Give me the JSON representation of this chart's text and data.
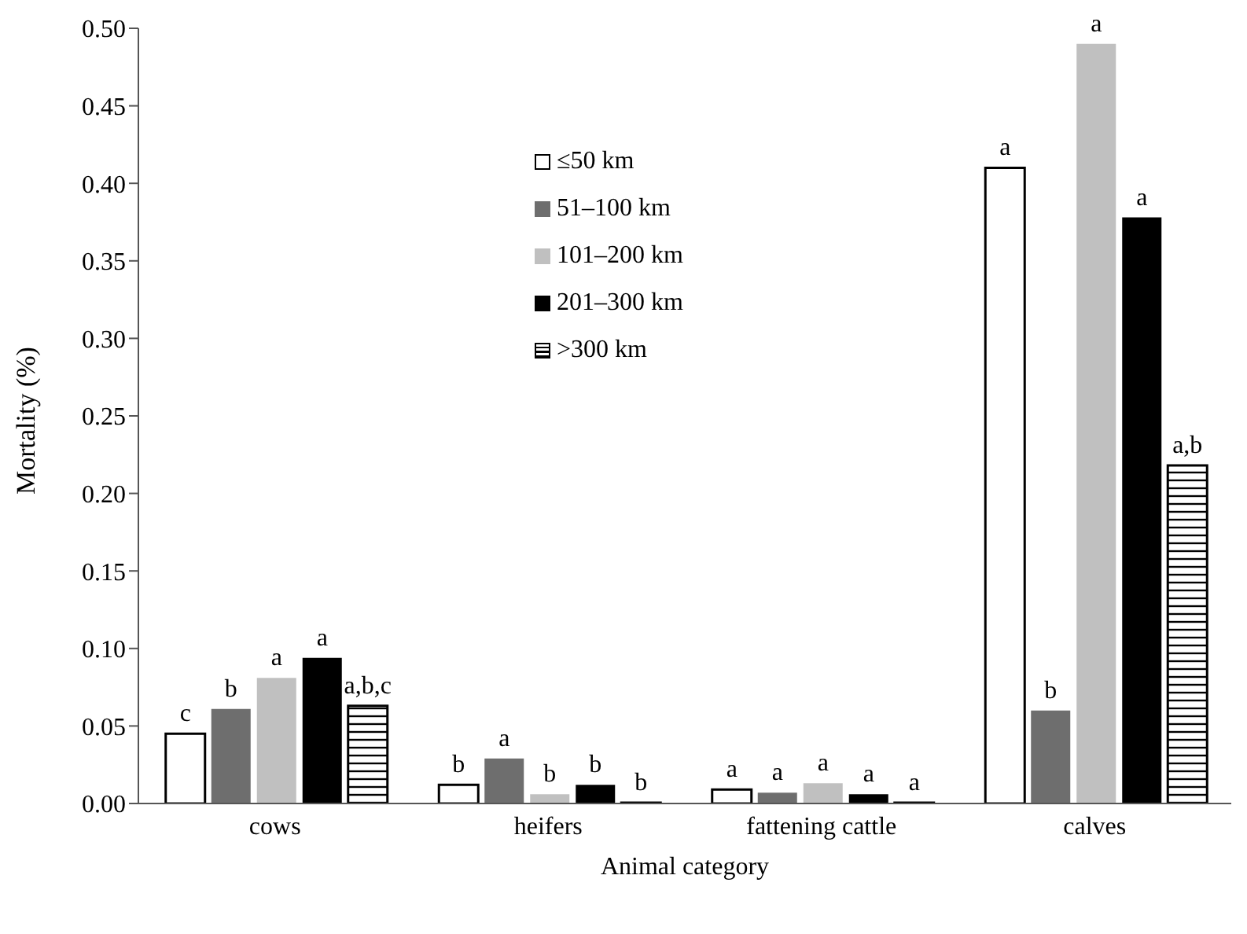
{
  "chart_data": {
    "type": "bar",
    "xlabel": "Animal category",
    "ylabel": "Mortality (%)",
    "categories": [
      "cows",
      "heifers",
      "fattening cattle",
      "calves"
    ],
    "ylim": [
      0,
      0.5
    ],
    "yticks": [
      {
        "value": 0,
        "label": "0.00"
      },
      {
        "value": 0.05,
        "label": "0.05"
      },
      {
        "value": 0.1,
        "label": "0.10"
      },
      {
        "value": 0.15,
        "label": "0.15"
      },
      {
        "value": 0.2,
        "label": "0.20"
      },
      {
        "value": 0.25,
        "label": "0.25"
      },
      {
        "value": 0.3,
        "label": "0.30"
      },
      {
        "value": 0.35,
        "label": "0.35"
      },
      {
        "value": 0.4,
        "label": "0.40"
      },
      {
        "value": 0.45,
        "label": "0.45"
      },
      {
        "value": 0.5,
        "label": "0.50"
      }
    ],
    "grid": false,
    "legend": "top",
    "series": [
      {
        "name": "≤50 km",
        "color": "#ffffff",
        "values": [
          0.045,
          0.012,
          0.009,
          0.41
        ],
        "value_labels": [
          "c",
          "b",
          "a",
          "a"
        ]
      },
      {
        "name": "51–100 km",
        "color": "#6e6e6e",
        "values": [
          0.061,
          0.029,
          0.007,
          0.06
        ],
        "value_labels": [
          "b",
          "a",
          "a",
          "b"
        ]
      },
      {
        "name": "101–200 km",
        "color": "#c0c0c0",
        "values": [
          0.081,
          0.006,
          0.013,
          0.49
        ],
        "value_labels": [
          "a",
          "b",
          "a",
          "a"
        ]
      },
      {
        "name": "201–300 km",
        "color": "#000000",
        "values": [
          0.094,
          0.012,
          0.006,
          0.378
        ],
        "value_labels": [
          "a",
          "b",
          "a",
          "a"
        ]
      },
      {
        "name": ">300 km",
        "color": "#000000",
        "values": [
          0.063,
          0,
          0,
          0.218
        ],
        "value_labels": [
          "a,b,c",
          "b",
          "a",
          "a,b"
        ]
      }
    ]
  }
}
